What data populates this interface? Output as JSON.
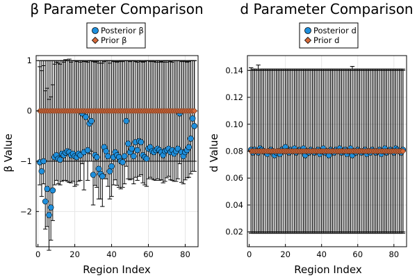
{
  "chart_data": [
    {
      "type": "scatter",
      "title": "β Parameter Comparison",
      "xlabel": "Region Index",
      "ylabel": "β Value",
      "xlim": [
        -1,
        87
      ],
      "ylim": [
        -2.7,
        1.1
      ],
      "xticks": [
        0,
        20,
        40,
        60,
        80
      ],
      "xtick_labels": [
        "0",
        "20",
        "40",
        "60",
        "80"
      ],
      "yticks": [
        1,
        0,
        -1,
        -2
      ],
      "ytick_labels": [
        "1",
        "0",
        "−1",
        "−2"
      ],
      "grid": true,
      "legend_position": "top-center",
      "series": [
        {
          "name": "Posterior β",
          "marker": "circle",
          "color": "#1f8fdc",
          "x": [
            1,
            2,
            3,
            4,
            5,
            6,
            7,
            8,
            9,
            10,
            11,
            12,
            13,
            14,
            15,
            16,
            17,
            18,
            19,
            20,
            21,
            22,
            23,
            24,
            25,
            26,
            27,
            28,
            29,
            30,
            31,
            32,
            33,
            34,
            35,
            36,
            37,
            38,
            39,
            40,
            41,
            42,
            43,
            44,
            45,
            46,
            47,
            48,
            49,
            50,
            51,
            52,
            53,
            54,
            55,
            56,
            57,
            58,
            59,
            60,
            61,
            62,
            63,
            64,
            65,
            66,
            67,
            68,
            69,
            70,
            71,
            72,
            73,
            74,
            75,
            76,
            77,
            78,
            79,
            80,
            81,
            82,
            83,
            84,
            85
          ],
          "y": [
            -1.02,
            -1.2,
            -1.0,
            -1.8,
            -1.55,
            -2.07,
            -1.92,
            -1.58,
            -0.92,
            -0.88,
            -0.95,
            -0.97,
            -0.85,
            -0.88,
            -0.83,
            -0.8,
            -0.82,
            -0.88,
            -0.85,
            -0.9,
            -0.92,
            -0.85,
            -0.88,
            -0.05,
            -0.82,
            -0.12,
            -0.78,
            -0.25,
            -0.2,
            -1.27,
            -0.88,
            -0.92,
            -1.15,
            -1.25,
            -1.3,
            -0.72,
            -0.8,
            -0.9,
            -1.2,
            -1.1,
            -0.92,
            -0.82,
            -0.88,
            -0.92,
            -1.0,
            -1.02,
            -0.9,
            -0.2,
            -0.65,
            -0.82,
            -0.75,
            -0.9,
            -0.62,
            -0.78,
            -0.6,
            -0.62,
            -0.88,
            -0.92,
            -0.95,
            -0.75,
            -0.72,
            -0.8,
            -0.82,
            -0.78,
            -0.75,
            -0.78,
            -0.82,
            -0.88,
            -0.8,
            -0.78,
            -0.75,
            -0.82,
            -0.78,
            -0.85,
            -0.8,
            -0.75,
            -0.05,
            -0.82,
            -0.9,
            -0.82,
            -0.78,
            -0.72,
            -0.55,
            -0.15,
            -0.3
          ],
          "err_low": [
            0.45,
            0.5,
            0.45,
            0.55,
            0.75,
            0.7,
            0.65,
            0.6,
            0.55,
            0.5,
            0.5,
            0.5,
            0.55,
            0.5,
            0.55,
            0.6,
            0.6,
            0.55,
            0.55,
            0.6,
            0.55,
            0.55,
            0.5,
            1.0,
            0.75,
            0.7,
            0.6,
            0.6,
            0.6,
            0.6,
            0.6,
            0.6,
            0.6,
            0.5,
            0.6,
            0.55,
            0.55,
            0.6,
            0.55,
            0.6,
            0.55,
            0.55,
            0.6,
            0.6,
            0.55,
            0.5,
            0.55,
            0.9,
            0.7,
            0.55,
            0.6,
            0.55,
            0.7,
            0.6,
            0.7,
            0.65,
            0.55,
            0.55,
            0.55,
            0.6,
            0.6,
            0.55,
            0.55,
            0.6,
            0.6,
            0.6,
            0.55,
            0.55,
            0.6,
            0.55,
            0.55,
            0.55,
            0.6,
            0.55,
            0.6,
            0.6,
            1.0,
            0.6,
            0.55,
            0.55,
            0.55,
            0.6,
            0.7,
            1.05,
            0.9
          ],
          "err_high": [
            1.9,
            2.0,
            1.9,
            2.2,
            2.0,
            2.3,
            2.2,
            2.1,
            1.85,
            1.85,
            1.9,
            1.9,
            1.85,
            1.85,
            1.85,
            1.8,
            1.85,
            1.85,
            1.85,
            1.9,
            1.9,
            1.85,
            1.85,
            1.05,
            1.8,
            1.1,
            1.75,
            1.25,
            1.2,
            2.25,
            1.85,
            1.9,
            2.1,
            2.2,
            2.25,
            1.7,
            1.8,
            1.9,
            2.15,
            2.1,
            1.9,
            1.8,
            1.85,
            1.9,
            2.0,
            2.0,
            1.9,
            1.2,
            1.65,
            1.8,
            1.75,
            1.9,
            1.6,
            1.75,
            1.6,
            1.6,
            1.85,
            1.9,
            1.95,
            1.75,
            1.7,
            1.8,
            1.8,
            1.75,
            1.75,
            1.75,
            1.8,
            1.85,
            1.8,
            1.75,
            1.75,
            1.8,
            1.75,
            1.85,
            1.8,
            1.75,
            1.05,
            1.8,
            1.9,
            1.8,
            1.75,
            1.7,
            1.55,
            1.15,
            1.3
          ]
        },
        {
          "name": "Prior β",
          "marker": "diamond",
          "color": "#d66a3a",
          "x": [
            1,
            2,
            3,
            4,
            5,
            6,
            7,
            8,
            9,
            10,
            11,
            12,
            13,
            14,
            15,
            16,
            17,
            18,
            19,
            20,
            21,
            22,
            23,
            24,
            25,
            26,
            27,
            28,
            29,
            30,
            31,
            32,
            33,
            34,
            35,
            36,
            37,
            38,
            39,
            40,
            41,
            42,
            43,
            44,
            45,
            46,
            47,
            48,
            49,
            50,
            51,
            52,
            53,
            54,
            55,
            56,
            57,
            58,
            59,
            60,
            61,
            62,
            63,
            64,
            65,
            66,
            67,
            68,
            69,
            70,
            71,
            72,
            73,
            74,
            75,
            76,
            77,
            78,
            79,
            80,
            81,
            82,
            83,
            84,
            85
          ],
          "y_constant": 0,
          "err_constant": 1
        }
      ]
    },
    {
      "type": "scatter",
      "title": "d Parameter Comparison",
      "xlabel": "Region Index",
      "ylabel": "d Value",
      "xlim": [
        -1,
        87
      ],
      "ylim": [
        0.009,
        0.151
      ],
      "xticks": [
        0,
        20,
        40,
        60,
        80
      ],
      "xtick_labels": [
        "0",
        "20",
        "40",
        "60",
        "80"
      ],
      "yticks": [
        0.02,
        0.04,
        0.06,
        0.08,
        0.1,
        0.12,
        0.14
      ],
      "ytick_labels": [
        "0.02",
        "0.04",
        "0.06",
        "0.08",
        "0.10",
        "0.12",
        "0.14"
      ],
      "grid": true,
      "legend_position": "top-center",
      "series": [
        {
          "name": "Posterior d",
          "marker": "circle",
          "color": "#1f8fdc",
          "x": [
            1,
            2,
            3,
            4,
            5,
            6,
            7,
            8,
            9,
            10,
            11,
            12,
            13,
            14,
            15,
            16,
            17,
            18,
            19,
            20,
            21,
            22,
            23,
            24,
            25,
            26,
            27,
            28,
            29,
            30,
            31,
            32,
            33,
            34,
            35,
            36,
            37,
            38,
            39,
            40,
            41,
            42,
            43,
            44,
            45,
            46,
            47,
            48,
            49,
            50,
            51,
            52,
            53,
            54,
            55,
            56,
            57,
            58,
            59,
            60,
            61,
            62,
            63,
            64,
            65,
            66,
            67,
            68,
            69,
            70,
            71,
            72,
            73,
            74,
            75,
            76,
            77,
            78,
            79,
            80,
            81,
            82,
            83,
            84,
            85
          ],
          "y": [
            0.081,
            0.079,
            0.081,
            0.08,
            0.079,
            0.082,
            0.081,
            0.08,
            0.079,
            0.078,
            0.08,
            0.081,
            0.08,
            0.077,
            0.079,
            0.08,
            0.078,
            0.081,
            0.08,
            0.083,
            0.08,
            0.079,
            0.081,
            0.08,
            0.082,
            0.079,
            0.08,
            0.081,
            0.08,
            0.082,
            0.077,
            0.08,
            0.079,
            0.081,
            0.08,
            0.079,
            0.08,
            0.081,
            0.078,
            0.08,
            0.082,
            0.079,
            0.08,
            0.077,
            0.081,
            0.08,
            0.079,
            0.081,
            0.08,
            0.082,
            0.079,
            0.08,
            0.081,
            0.078,
            0.08,
            0.082,
            0.077,
            0.08,
            0.079,
            0.081,
            0.08,
            0.079,
            0.08,
            0.081,
            0.078,
            0.08,
            0.079,
            0.081,
            0.08,
            0.079,
            0.08,
            0.081,
            0.078,
            0.08,
            0.082,
            0.079,
            0.08,
            0.081,
            0.08,
            0.079,
            0.082,
            0.081,
            0.08,
            0.079,
            0.081
          ],
          "err_low": [
            0.062,
            0.06,
            0.062,
            0.061,
            0.06,
            0.063,
            0.062,
            0.061,
            0.06,
            0.059,
            0.061,
            0.062,
            0.061,
            0.058,
            0.06,
            0.061,
            0.059,
            0.062,
            0.061,
            0.064,
            0.061,
            0.06,
            0.062,
            0.061,
            0.063,
            0.06,
            0.061,
            0.062,
            0.061,
            0.063,
            0.058,
            0.061,
            0.06,
            0.062,
            0.061,
            0.06,
            0.061,
            0.062,
            0.059,
            0.061,
            0.063,
            0.06,
            0.061,
            0.058,
            0.062,
            0.061,
            0.06,
            0.062,
            0.061,
            0.063,
            0.06,
            0.061,
            0.062,
            0.059,
            0.061,
            0.063,
            0.058,
            0.061,
            0.06,
            0.062,
            0.061,
            0.06,
            0.061,
            0.062,
            0.059,
            0.061,
            0.06,
            0.062,
            0.061,
            0.06,
            0.061,
            0.062,
            0.059,
            0.061,
            0.063,
            0.06,
            0.061,
            0.062,
            0.061,
            0.06,
            0.063,
            0.062,
            0.061,
            0.06,
            0.062
          ],
          "err_high": [
            0.061,
            0.062,
            0.06,
            0.061,
            0.065,
            0.059,
            0.06,
            0.061,
            0.062,
            0.063,
            0.061,
            0.06,
            0.061,
            0.064,
            0.062,
            0.061,
            0.063,
            0.06,
            0.061,
            0.058,
            0.061,
            0.062,
            0.06,
            0.061,
            0.059,
            0.062,
            0.061,
            0.06,
            0.061,
            0.059,
            0.064,
            0.061,
            0.062,
            0.06,
            0.061,
            0.062,
            0.061,
            0.06,
            0.063,
            0.061,
            0.059,
            0.062,
            0.061,
            0.064,
            0.06,
            0.061,
            0.062,
            0.06,
            0.061,
            0.059,
            0.062,
            0.061,
            0.06,
            0.063,
            0.061,
            0.059,
            0.066,
            0.061,
            0.062,
            0.06,
            0.061,
            0.062,
            0.061,
            0.06,
            0.063,
            0.061,
            0.062,
            0.06,
            0.061,
            0.062,
            0.061,
            0.06,
            0.063,
            0.061,
            0.059,
            0.062,
            0.061,
            0.06,
            0.061,
            0.062,
            0.059,
            0.06,
            0.061,
            0.062,
            0.06
          ]
        },
        {
          "name": "Prior d",
          "marker": "diamond",
          "color": "#d66a3a",
          "x": [
            1,
            2,
            3,
            4,
            5,
            6,
            7,
            8,
            9,
            10,
            11,
            12,
            13,
            14,
            15,
            16,
            17,
            18,
            19,
            20,
            21,
            22,
            23,
            24,
            25,
            26,
            27,
            28,
            29,
            30,
            31,
            32,
            33,
            34,
            35,
            36,
            37,
            38,
            39,
            40,
            41,
            42,
            43,
            44,
            45,
            46,
            47,
            48,
            49,
            50,
            51,
            52,
            53,
            54,
            55,
            56,
            57,
            58,
            59,
            60,
            61,
            62,
            63,
            64,
            65,
            66,
            67,
            68,
            69,
            70,
            71,
            72,
            73,
            74,
            75,
            76,
            77,
            78,
            79,
            80,
            81,
            82,
            83,
            84,
            85
          ],
          "y_constant": 0.08,
          "err_constant": 0.06
        }
      ]
    }
  ]
}
